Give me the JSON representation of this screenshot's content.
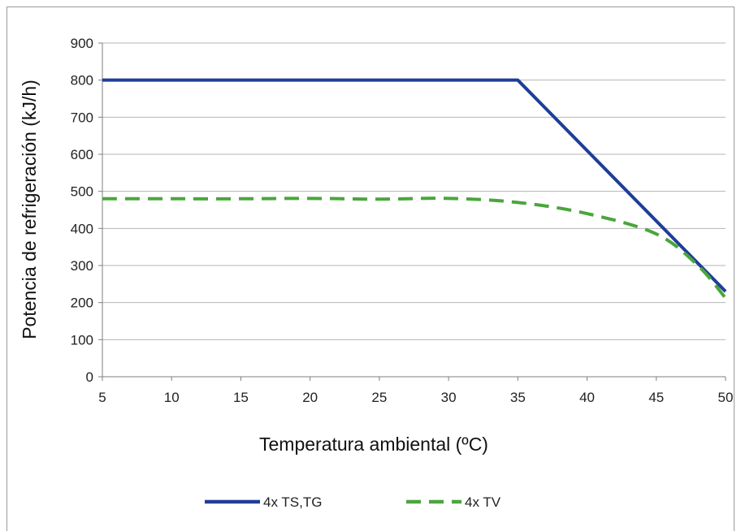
{
  "chart_data": {
    "type": "line",
    "xlabel": "Temperatura ambiental (ºC)",
    "ylabel": "Potencia de refrigeración (kJ/h)",
    "xlim": [
      5,
      50
    ],
    "ylim": [
      0,
      900
    ],
    "x_ticks": [
      "5",
      "10",
      "15",
      "20",
      "25",
      "30",
      "35",
      "40",
      "45",
      "50"
    ],
    "y_ticks": [
      "0",
      "100",
      "200",
      "300",
      "400",
      "500",
      "600",
      "700",
      "800",
      "900"
    ],
    "grid": "horizontal",
    "legend_position": "bottom",
    "series": [
      {
        "name": "4x TS,TG",
        "color": "#1f3d99",
        "style": "solid",
        "x": [
          5,
          35,
          50
        ],
        "y": [
          800,
          800,
          230
        ]
      },
      {
        "name": "4x TV",
        "color": "#4aa63c",
        "style": "dashed",
        "x": [
          5,
          10,
          15,
          20,
          25,
          30,
          35,
          40,
          45,
          48,
          50
        ],
        "y": [
          480,
          480,
          480,
          481,
          479,
          481,
          470,
          440,
          385,
          300,
          212
        ]
      }
    ]
  }
}
